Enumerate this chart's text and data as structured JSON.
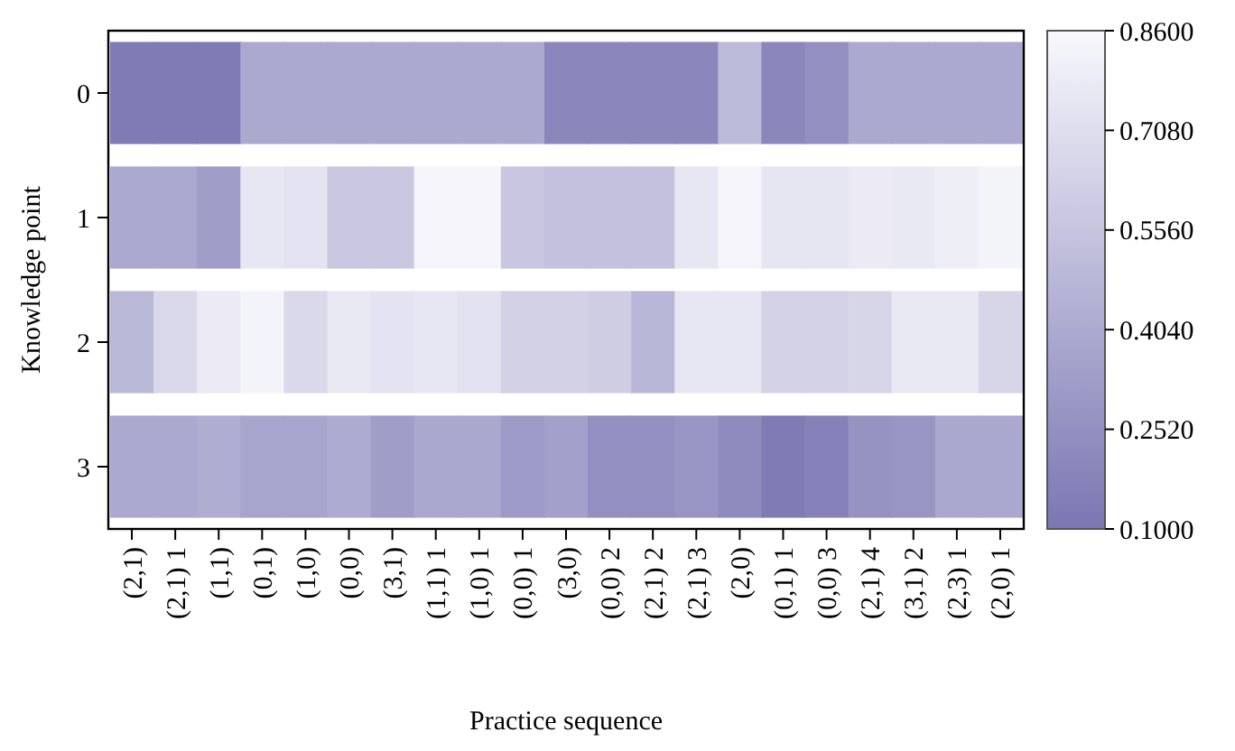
{
  "chart_data": {
    "type": "heatmap",
    "xlabel": "Practice sequence",
    "ylabel": "Knowledge point",
    "categories": [
      "(2,1)",
      "(2,1) 1",
      "(1,1)",
      "(0,1)",
      "(1,0)",
      "(0,0)",
      "(3,1)",
      "(1,1) 1",
      "(1,0) 1",
      "(0,0) 1",
      "(3,0)",
      "(0,0) 2",
      "(2,1) 2",
      "(2,1) 3",
      "(2,0)",
      "(0,1) 1",
      "(0,0) 3",
      "(2,1) 4",
      "(3,1) 2",
      "(2,3) 1",
      "(2,0) 1"
    ],
    "y_categories": [
      "0",
      "1",
      "2",
      "3"
    ],
    "cells": [
      [
        0.13,
        0.13,
        0.13,
        0.4,
        0.4,
        0.4,
        0.4,
        0.4,
        0.4,
        0.4,
        0.2,
        0.2,
        0.2,
        0.2,
        0.5,
        0.2,
        0.25,
        0.4,
        0.4,
        0.4,
        0.4
      ],
      [
        0.4,
        0.4,
        0.33,
        0.76,
        0.74,
        0.58,
        0.58,
        0.84,
        0.84,
        0.57,
        0.54,
        0.54,
        0.54,
        0.76,
        0.84,
        0.75,
        0.75,
        0.78,
        0.77,
        0.8,
        0.83
      ],
      [
        0.49,
        0.68,
        0.78,
        0.83,
        0.68,
        0.77,
        0.74,
        0.76,
        0.73,
        0.63,
        0.63,
        0.61,
        0.48,
        0.76,
        0.76,
        0.64,
        0.64,
        0.66,
        0.77,
        0.77,
        0.66
      ],
      [
        0.4,
        0.4,
        0.42,
        0.37,
        0.37,
        0.41,
        0.33,
        0.39,
        0.39,
        0.31,
        0.35,
        0.25,
        0.25,
        0.28,
        0.22,
        0.13,
        0.17,
        0.27,
        0.28,
        0.39,
        0.39
      ]
    ],
    "clim": [
      0.1,
      0.86
    ],
    "cticks": [
      {
        "value": 0.1,
        "label": "0.1000"
      },
      {
        "value": 0.252,
        "label": "0.2520"
      },
      {
        "value": 0.404,
        "label": "0.4040"
      },
      {
        "value": 0.556,
        "label": "0.5560"
      },
      {
        "value": 0.708,
        "label": "0.7080"
      },
      {
        "value": 0.86,
        "label": "0.8600"
      }
    ]
  }
}
